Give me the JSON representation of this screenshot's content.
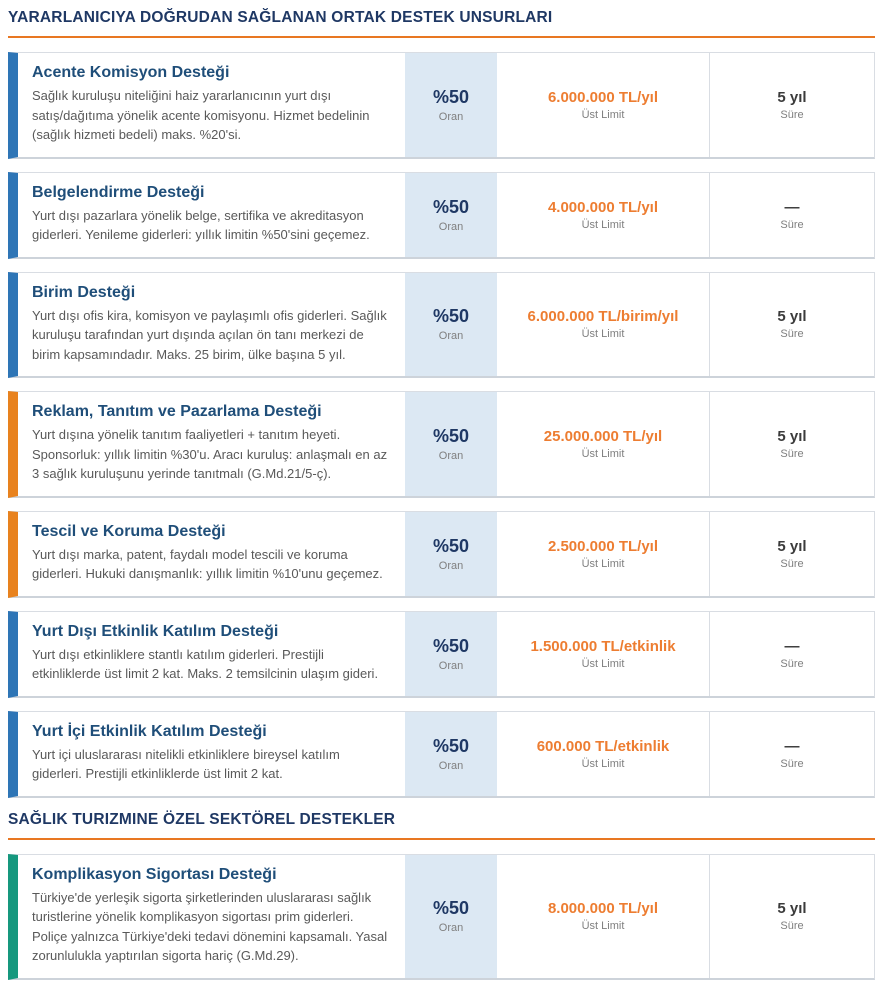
{
  "colors": {
    "heading": "#1F3864",
    "section_rule": "#E87722",
    "card_title": "#1F4E79",
    "amount": "#ED7D31",
    "rate_bg": "#DCE8F3",
    "accents": {
      "blue": "#2E75B6",
      "orange": "#E8821E",
      "green": "#16987E"
    }
  },
  "labels": {
    "rate": "Oran",
    "limit": "Üst Limit",
    "duration": "Süre"
  },
  "sections": [
    {
      "title": "YARARLANICIYA DOĞRUDAN SAĞLANAN ORTAK DESTEK UNSURLARI",
      "cards": [
        {
          "accent": "blue",
          "title": "Acente Komisyon Desteği",
          "description": "Sağlık kuruluşu niteliğini haiz yararlanıcının yurt dışı satış/dağıtıma yönelik acente komisyonu. Hizmet bedelinin (sağlık hizmeti bedeli) maks. %20'si.",
          "rate": "%50",
          "limit": "6.000.000 TL/yıl",
          "duration": "5 yıl"
        },
        {
          "accent": "blue",
          "title": "Belgelendirme Desteği",
          "description": "Yurt dışı pazarlara yönelik belge, sertifika ve akreditasyon giderleri. Yenileme giderleri: yıllık limitin %50'sini geçemez.",
          "rate": "%50",
          "limit": "4.000.000 TL/yıl",
          "duration": "—"
        },
        {
          "accent": "blue",
          "title": "Birim Desteği",
          "description": "Yurt dışı ofis kira, komisyon ve paylaşımlı ofis giderleri. Sağlık kuruluşu tarafından yurt dışında açılan ön tanı merkezi de birim kapsamındadır. Maks. 25 birim, ülke başına 5 yıl.",
          "rate": "%50",
          "limit": "6.000.000 TL/birim/yıl",
          "duration": "5 yıl"
        },
        {
          "accent": "orange",
          "title": "Reklam, Tanıtım ve Pazarlama Desteği",
          "description": "Yurt dışına yönelik tanıtım faaliyetleri + tanıtım heyeti. Sponsorluk: yıllık limitin %30'u. Aracı kuruluş: anlaşmalı en az 3 sağlık kuruluşunu yerinde tanıtmalı (G.Md.21/5-ç).",
          "rate": "%50",
          "limit": "25.000.000 TL/yıl",
          "duration": "5 yıl"
        },
        {
          "accent": "orange",
          "title": "Tescil ve Koruma Desteği",
          "description": "Yurt dışı marka, patent, faydalı model tescili ve koruma giderleri. Hukuki danışmanlık: yıllık limitin %10'unu geçemez.",
          "rate": "%50",
          "limit": "2.500.000 TL/yıl",
          "duration": "5 yıl"
        },
        {
          "accent": "blue",
          "title": "Yurt Dışı Etkinlik Katılım Desteği",
          "description": "Yurt dışı etkinliklere stantlı katılım giderleri. Prestijli etkinliklerde üst limit 2 kat. Maks. 2 temsilcinin ulaşım gideri.",
          "rate": "%50",
          "limit": "1.500.000 TL/etkinlik",
          "duration": "—"
        },
        {
          "accent": "blue",
          "title": "Yurt İçi Etkinlik Katılım Desteği",
          "description": "Yurt içi uluslararası nitelikli etkinliklere bireysel katılım giderleri. Prestijli etkinliklerde üst limit 2 kat.",
          "rate": "%50",
          "limit": "600.000 TL/etkinlik",
          "duration": "—"
        }
      ]
    },
    {
      "title": "SAĞLIK TURIZMINE ÖZEL SEKTÖREL DESTEKLER",
      "cards": [
        {
          "accent": "green",
          "title": "Komplikasyon Sigortası Desteği",
          "description": "Türkiye'de yerleşik sigorta şirketlerinden uluslararası sağlık turistlerine yönelik komplikasyon sigortası prim giderleri. Poliçe yalnızca Türkiye'deki tedavi dönemini kapsamalı. Yasal zorunlulukla yaptırılan sigorta hariç (G.Md.29).",
          "rate": "%50",
          "limit": "8.000.000 TL/yıl",
          "duration": "5 yıl"
        }
      ]
    }
  ]
}
